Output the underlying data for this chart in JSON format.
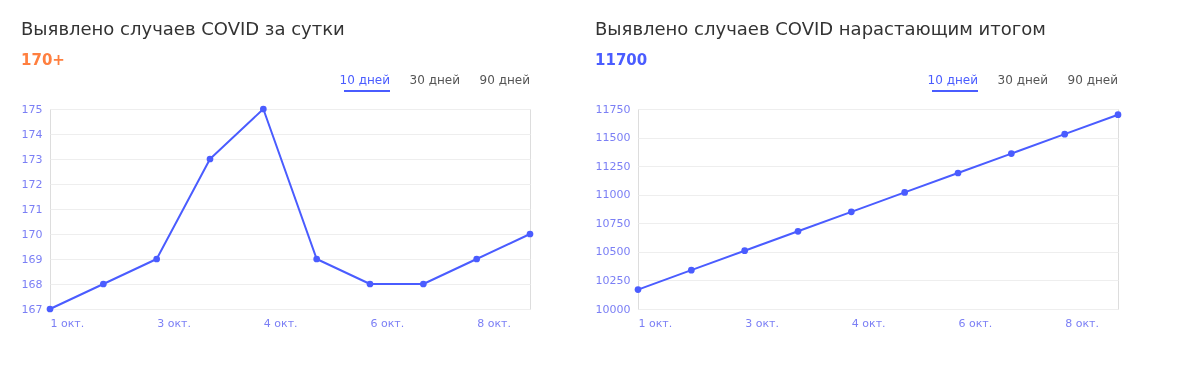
{
  "chart_data": [
    {
      "type": "line",
      "title": "Выявлено случаев COVID за сутки",
      "subtitle": "170+",
      "annotations": [
        "10 дней",
        "30 дней",
        "90 дней"
      ],
      "categories": [
        "1 окт.",
        null,
        "3 окт.",
        null,
        "4 окт.",
        null,
        "6 окт.",
        null,
        "8 окт.",
        null
      ],
      "series": [
        {
          "color": "#4a5cff",
          "values": [
            167,
            168,
            169,
            173,
            175,
            169,
            168,
            168,
            169,
            170
          ]
        }
      ],
      "ylim": [
        167,
        175
      ],
      "yticks": [
        167,
        168,
        169,
        170,
        171,
        172,
        173,
        174,
        175
      ],
      "grid": "y",
      "marker": "circle",
      "line_style": "solid"
    },
    {
      "type": "line",
      "title": "Выявлено случаев COVID нарастающим итогом",
      "subtitle": "11700",
      "annotations": [
        "10 дней",
        "30 дней",
        "90 дней"
      ],
      "categories": [
        "1 окт.",
        null,
        "3 окт.",
        null,
        "4 окт.",
        null,
        "6 окт.",
        null,
        "8 окт.",
        null
      ],
      "series": [
        {
          "color": "#4a5cff",
          "values": [
            10170,
            10340,
            10510,
            10680,
            10850,
            11020,
            11190,
            11360,
            11530,
            11700
          ]
        }
      ],
      "ylim": [
        10000,
        11750
      ],
      "yticks": [
        10000,
        10250,
        10500,
        10750,
        11000,
        11250,
        11500,
        11750
      ],
      "grid": "y",
      "marker": "circle",
      "line_style": "solid"
    }
  ]
}
